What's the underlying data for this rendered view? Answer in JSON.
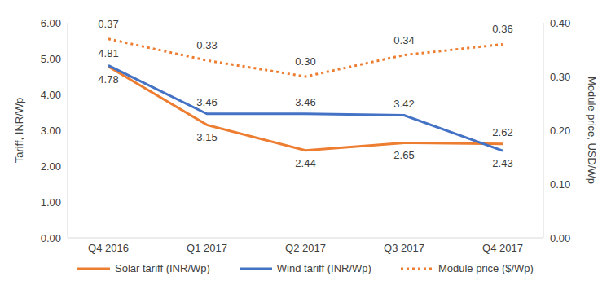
{
  "chart_data": {
    "type": "line",
    "categories": [
      "Q4 2016",
      "Q1 2017",
      "Q2 2017",
      "Q3 2017",
      "Q4 2017"
    ],
    "y_label": "Tariff, INR/Wp",
    "y2_label": "Module price, USD/Wp",
    "ylim": [
      0,
      6
    ],
    "yticks": [
      {
        "value": 0,
        "label": "0.00"
      },
      {
        "value": 1,
        "label": "1.00"
      },
      {
        "value": 2,
        "label": "2.00"
      },
      {
        "value": 3,
        "label": "3.00"
      },
      {
        "value": 4,
        "label": "4.00"
      },
      {
        "value": 5,
        "label": "5.00"
      },
      {
        "value": 6,
        "label": "6.00"
      }
    ],
    "y2lim": [
      0,
      0.4
    ],
    "y2ticks": [
      {
        "value": 0,
        "label": "0.00"
      },
      {
        "value": 0.1,
        "label": "0.10"
      },
      {
        "value": 0.2,
        "label": "0.20"
      },
      {
        "value": 0.3,
        "label": "0.30"
      },
      {
        "value": 0.4,
        "label": "0.40"
      }
    ],
    "grid": false,
    "legend": "bottom",
    "data_labels": true,
    "series": [
      {
        "name": "Solar tariff (INR/Wp)",
        "color": "#ED7D31",
        "line_style": "solid",
        "values": [
          4.78,
          3.15,
          2.44,
          2.65,
          2.62
        ]
      },
      {
        "name": "Wind tariff (INR/Wp)",
        "color": "#4472C4",
        "line_style": "solid",
        "values": [
          4.81,
          3.46,
          3.46,
          3.42,
          2.43
        ]
      },
      {
        "name": "Module price ($/Wp)",
        "color": "#ED7D31",
        "line_style": "dotted",
        "axis": "y2",
        "values": [
          0.37,
          0.33,
          0.3,
          0.34,
          0.36
        ],
        "value_labels": [
          "0.37",
          "0.33",
          "0.30",
          "0.34",
          "0.36"
        ]
      }
    ]
  }
}
